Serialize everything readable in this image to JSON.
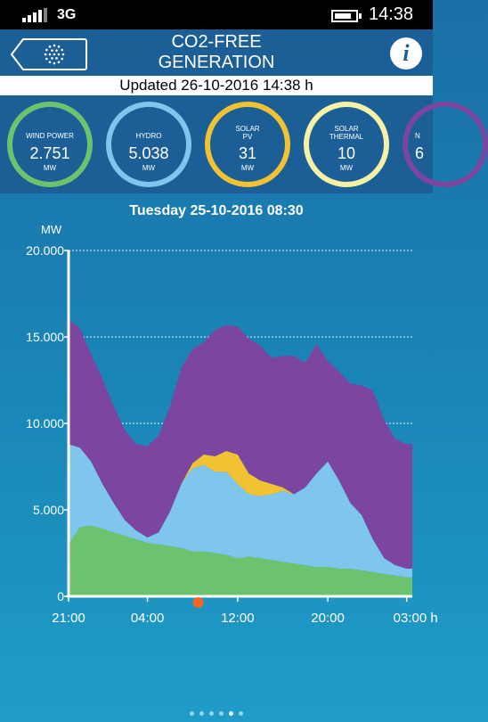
{
  "status_bar": {
    "network": "3G",
    "time": "14:38",
    "signal_bars": 4,
    "battery_level": 0.8
  },
  "header": {
    "title_line1": "CO2-FREE",
    "title_line2": "GENERATION",
    "info_label": "i",
    "back_icon": "sun-dots-icon"
  },
  "updated": "Updated 26-10-2016 14:38 h",
  "gauges": [
    {
      "label": "WIND POWER",
      "value": "2.751",
      "unit": "MW",
      "color": "#6cc26d"
    },
    {
      "label": "HYDRO",
      "value": "5.038",
      "unit": "MW",
      "color": "#7fc6ee"
    },
    {
      "label": "SOLAR\nPV",
      "value": "31",
      "unit": "MW",
      "color": "#f1c232"
    },
    {
      "label": "SOLAR\nTHERMAL",
      "value": "10",
      "unit": "MW",
      "color": "#f6f1a7"
    },
    {
      "label": "N",
      "value": "6",
      "unit": "",
      "color": "#7b45a0"
    }
  ],
  "chart_header": "Tuesday 25-10-2016 08:30",
  "chart_data": {
    "type": "area",
    "ylabel": "MW",
    "ylim": [
      0,
      20000
    ],
    "y_ticks": [
      "20.000",
      "15.000",
      "10.000",
      "5.000",
      "0"
    ],
    "y_tick_values": [
      20000,
      15000,
      10000,
      5000,
      0
    ],
    "x_tick_labels": [
      "21:00",
      "04:00",
      "12:00",
      "20:00",
      "03:00 h"
    ],
    "x_tick_hours": [
      0,
      7,
      15,
      23,
      30
    ],
    "x_range_hours": [
      0,
      30.5
    ],
    "marker_hour": 11.5,
    "stacked": true,
    "x_hours": [
      0,
      1,
      2,
      3,
      4,
      5,
      6,
      7,
      8,
      9,
      10,
      11,
      12,
      13,
      14,
      15,
      16,
      17,
      18,
      19,
      20,
      21,
      22,
      23,
      24,
      25,
      26,
      27,
      28,
      29,
      30,
      30.5
    ],
    "series": [
      {
        "color": "#6cc26d",
        "values": [
          3000,
          4000,
          4100,
          3900,
          3700,
          3500,
          3300,
          3100,
          3000,
          2900,
          2800,
          2600,
          2600,
          2500,
          2400,
          2200,
          2300,
          2200,
          2100,
          2000,
          1900,
          1800,
          1700,
          1700,
          1600,
          1600,
          1500,
          1400,
          1300,
          1200,
          1100,
          1100
        ]
      },
      {
        "color": "#7fc6ee",
        "values": [
          5800,
          4600,
          3700,
          2600,
          1700,
          900,
          500,
          300,
          700,
          2000,
          3700,
          4800,
          5000,
          4700,
          4800,
          4300,
          3600,
          3600,
          3800,
          4100,
          4000,
          4500,
          5400,
          6100,
          5100,
          3800,
          3200,
          1900,
          900,
          600,
          500,
          500
        ]
      },
      {
        "color": "#f1c232",
        "values": [
          0,
          0,
          0,
          0,
          0,
          0,
          0,
          0,
          0,
          0,
          0,
          300,
          600,
          900,
          1200,
          1700,
          1200,
          900,
          600,
          200,
          0,
          0,
          0,
          0,
          0,
          0,
          0,
          0,
          0,
          0,
          0,
          0
        ]
      },
      {
        "color": "#7b45a0",
        "values": [
          7200,
          6900,
          6200,
          6100,
          5600,
          5200,
          5000,
          5300,
          5600,
          6100,
          6700,
          6600,
          6500,
          7300,
          7300,
          7400,
          7800,
          7800,
          7300,
          7600,
          8000,
          7200,
          7500,
          5800,
          6300,
          6900,
          7500,
          8600,
          8000,
          7300,
          7200,
          7200
        ]
      }
    ]
  },
  "page_indicator": {
    "count": 6,
    "active": 5
  }
}
